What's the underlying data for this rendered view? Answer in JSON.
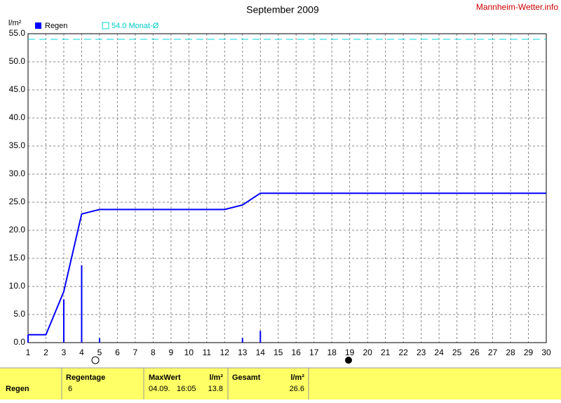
{
  "chart_data": {
    "type": "bar",
    "title": "September 2009",
    "source": "Mannheim-Wetter.info",
    "y_label": "l/m²",
    "series": [
      {
        "name": "Regen",
        "color": "#0000ff",
        "x": [
          1,
          3,
          4,
          5,
          13,
          14
        ],
        "values": [
          1.4,
          7.7,
          13.8,
          0.8,
          0.8,
          2.1
        ]
      }
    ],
    "cumulative": {
      "color": "#0000ff",
      "x": [
        1,
        2,
        3,
        4,
        5,
        12,
        13,
        14,
        30
      ],
      "values": [
        1.4,
        1.4,
        9.1,
        22.9,
        23.7,
        23.7,
        24.5,
        26.6,
        26.6
      ]
    },
    "average": {
      "label": "54.0 Monat-Ø",
      "value": 54.0,
      "color": "#00d8d8"
    },
    "xlim": [
      1,
      30
    ],
    "xticks": [
      1,
      2,
      3,
      4,
      5,
      6,
      7,
      8,
      9,
      10,
      11,
      12,
      13,
      14,
      15,
      16,
      17,
      18,
      19,
      20,
      21,
      22,
      23,
      24,
      25,
      26,
      27,
      28,
      29,
      30
    ],
    "ylim": [
      0,
      55
    ],
    "yticks": [
      {
        "value": 0,
        "label": "0.0"
      },
      {
        "value": 5,
        "label": "5.0"
      },
      {
        "value": 10,
        "label": "10.0"
      },
      {
        "value": 15,
        "label": "15.0"
      },
      {
        "value": 20,
        "label": "20.0"
      },
      {
        "value": 25,
        "label": "25.0"
      },
      {
        "value": 30,
        "label": "30.0"
      },
      {
        "value": 35,
        "label": "35.0"
      },
      {
        "value": 40,
        "label": "40.0"
      },
      {
        "value": 45,
        "label": "45.0"
      },
      {
        "value": 50,
        "label": "50.0"
      },
      {
        "value": 55,
        "label": "55.0"
      }
    ],
    "grid": true
  },
  "table": {
    "headers": [
      "Regentage",
      "MaxWert",
      "l/m²",
      "Gesamt",
      "l/m²"
    ],
    "row": {
      "label": "Regen",
      "regentage": "6",
      "max_date": "04.09.",
      "max_time": "16:05",
      "max_value": "13.8",
      "total": "26.6"
    }
  }
}
